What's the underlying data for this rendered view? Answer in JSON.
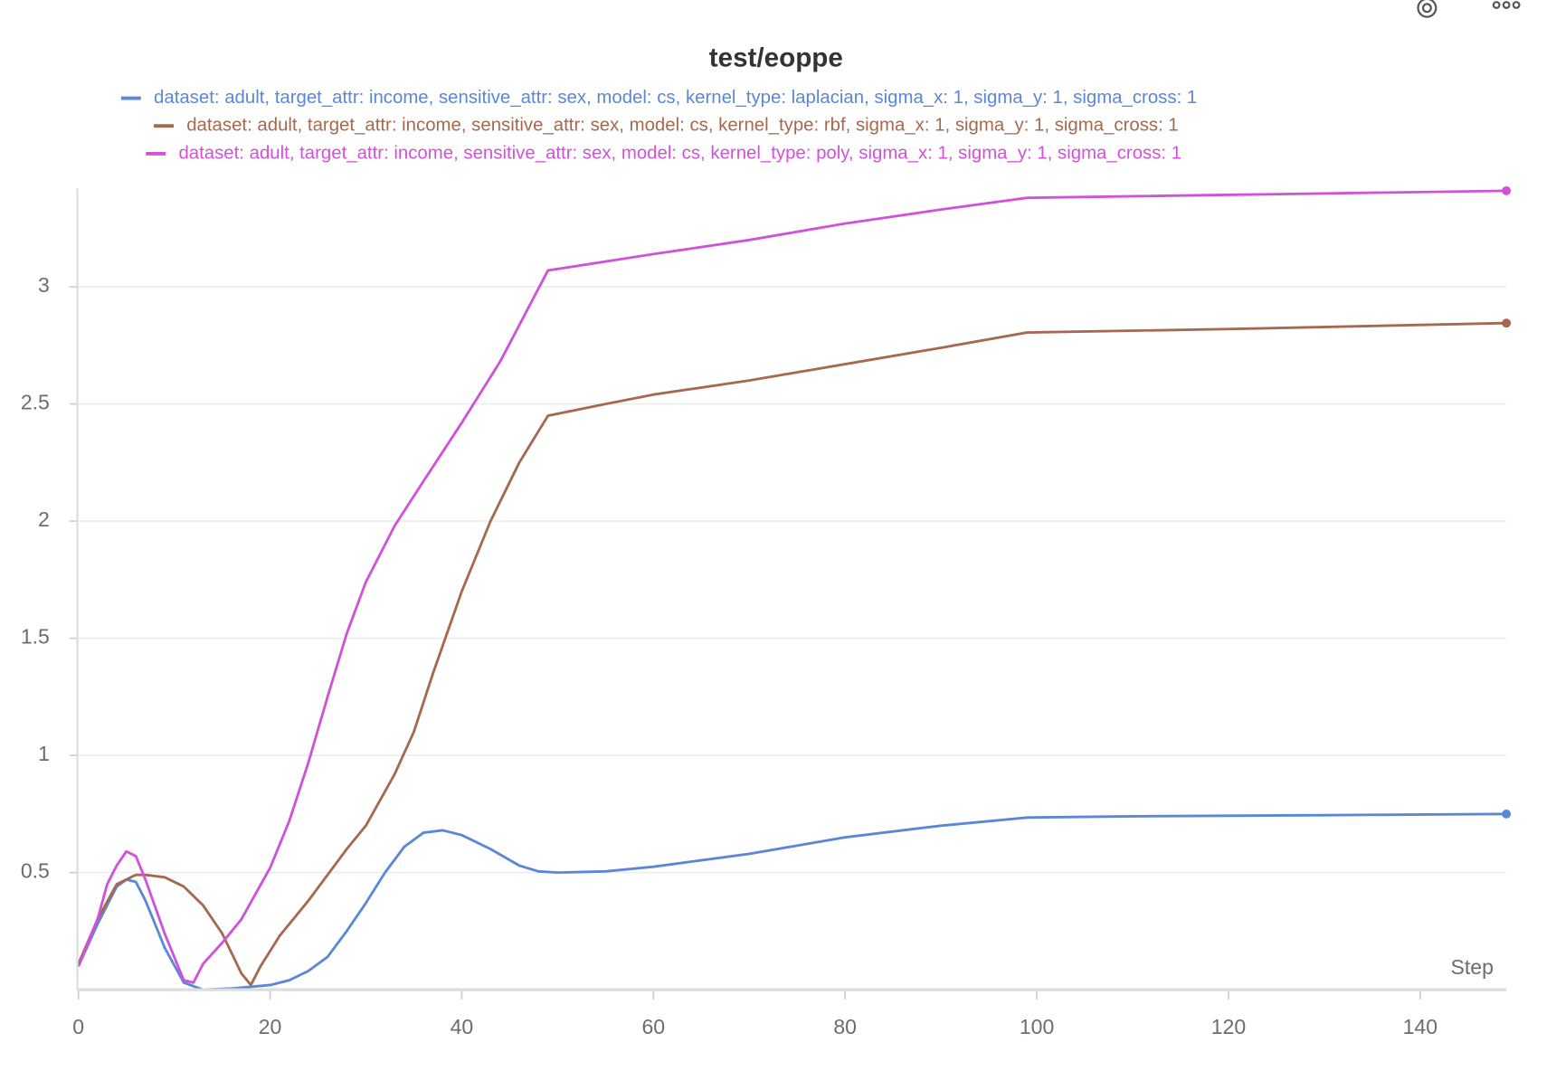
{
  "chart_data": {
    "type": "line",
    "title": "test/eoppe",
    "x_label": "Step",
    "xlim": [
      0,
      149
    ],
    "ylim": [
      0,
      3.42
    ],
    "xticks": [
      0,
      20,
      40,
      60,
      80,
      100,
      120,
      140
    ],
    "yticks": [
      0.5,
      1,
      1.5,
      2,
      2.5,
      3
    ],
    "grid": true,
    "legend": "top",
    "series": [
      {
        "name": "dataset: adult, target_attr: income, sensitive_attr: sex, model: cs, kernel_type: laplacian, sigma_x: 1, sigma_y: 1, sigma_cross: 1",
        "color": "#5b87d9",
        "x": [
          0,
          2,
          4,
          5,
          6,
          7,
          9,
          11,
          13,
          16,
          20,
          22,
          24,
          26,
          28,
          30,
          32,
          34,
          36,
          38,
          40,
          43,
          46,
          48,
          50,
          55,
          60,
          70,
          80,
          90,
          99,
          110,
          130,
          149
        ],
        "values": [
          0.1,
          0.28,
          0.44,
          0.47,
          0.46,
          0.38,
          0.18,
          0.03,
          0.0,
          0.005,
          0.02,
          0.04,
          0.08,
          0.14,
          0.25,
          0.37,
          0.5,
          0.61,
          0.67,
          0.68,
          0.66,
          0.6,
          0.53,
          0.505,
          0.5,
          0.505,
          0.525,
          0.58,
          0.65,
          0.7,
          0.735,
          0.74,
          0.745,
          0.75
        ]
      },
      {
        "name": "dataset: adult, target_attr: income, sensitive_attr: sex, model: cs, kernel_type: rbf, sigma_x: 1, sigma_y: 1, sigma_cross: 1",
        "color": "#a5694f",
        "x": [
          0,
          2,
          4,
          6,
          7,
          9,
          11,
          13,
          15,
          17,
          18,
          19,
          21,
          24,
          28,
          30,
          33,
          35,
          37,
          40,
          43,
          46,
          49,
          55,
          60,
          70,
          80,
          90,
          99,
          120,
          149
        ],
        "values": [
          0.11,
          0.3,
          0.45,
          0.49,
          0.49,
          0.48,
          0.44,
          0.36,
          0.24,
          0.07,
          0.02,
          0.1,
          0.23,
          0.38,
          0.6,
          0.7,
          0.92,
          1.1,
          1.35,
          1.7,
          2.0,
          2.25,
          2.45,
          2.5,
          2.54,
          2.6,
          2.67,
          2.74,
          2.805,
          2.82,
          2.845
        ]
      },
      {
        "name": "dataset: adult, target_attr: income, sensitive_attr: sex, model: cs, kernel_type: poly, sigma_x: 1, sigma_y: 1, sigma_cross: 1",
        "color": "#d052d8",
        "x": [
          0,
          2,
          3,
          4,
          5,
          6,
          7,
          9,
          11,
          12,
          13,
          15,
          17,
          20,
          22,
          24,
          26,
          28,
          30,
          33,
          36,
          40,
          44,
          49,
          60,
          70,
          80,
          90,
          99,
          149
        ],
        "values": [
          0.1,
          0.3,
          0.45,
          0.53,
          0.59,
          0.57,
          0.47,
          0.24,
          0.04,
          0.03,
          0.11,
          0.2,
          0.3,
          0.52,
          0.72,
          0.97,
          1.25,
          1.52,
          1.74,
          1.98,
          2.17,
          2.42,
          2.68,
          3.07,
          3.14,
          3.2,
          3.27,
          3.33,
          3.38,
          3.41
        ]
      }
    ]
  }
}
